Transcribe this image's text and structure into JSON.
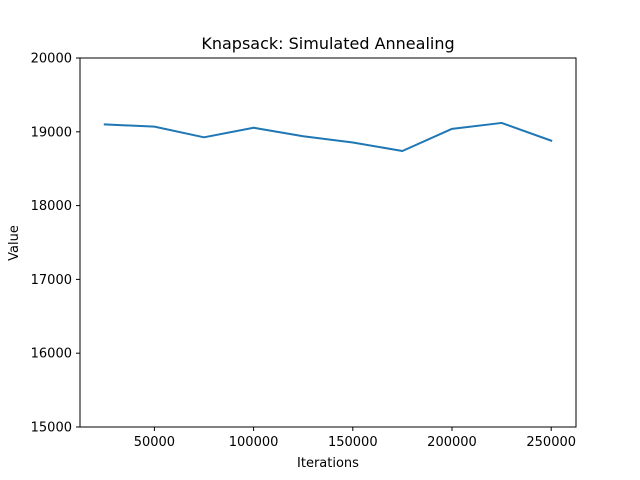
{
  "chart_data": {
    "type": "line",
    "title": "Knapsack: Simulated Annealing",
    "xlabel": "Iterations",
    "ylabel": "Value",
    "xlim": [
      12500,
      262500
    ],
    "ylim": [
      15000,
      20000
    ],
    "xticks": [
      50000,
      100000,
      150000,
      200000,
      250000
    ],
    "yticks": [
      15000,
      16000,
      17000,
      18000,
      19000,
      20000
    ],
    "grid": false,
    "series": [
      {
        "color": "#1f77b4",
        "x": [
          25000,
          50000,
          75000,
          100000,
          125000,
          150000,
          175000,
          200000,
          225000,
          250000
        ],
        "y": [
          19100,
          19070,
          18925,
          19055,
          18940,
          18855,
          18740,
          19040,
          19120,
          18880
        ]
      }
    ]
  }
}
